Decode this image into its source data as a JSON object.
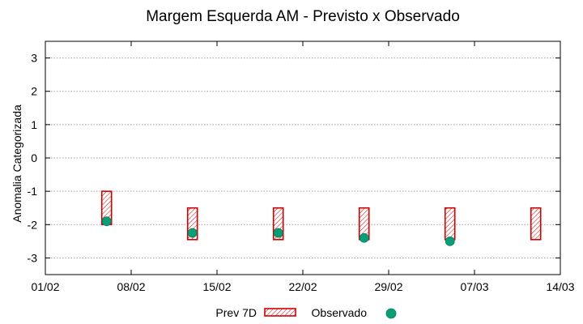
{
  "chart_data": {
    "type": "scatter",
    "title": "Margem Esquerda AM - Previsto x Observado",
    "xlabel": "",
    "ylabel": "Anomalia Categorizada",
    "x_tick_labels": [
      "01/02",
      "08/02",
      "15/02",
      "22/02",
      "29/02",
      "07/03",
      "14/03"
    ],
    "xlim_days": [
      0,
      42
    ],
    "ylim": [
      -3.5,
      3.5
    ],
    "y_ticks": [
      3,
      2,
      1,
      0,
      -1,
      -2,
      -3
    ],
    "grid": true,
    "legend_position": "bottom",
    "series": [
      {
        "name": "Prev 7D",
        "style": "hatched-box",
        "color": "#d40000",
        "points": [
          {
            "day": 5,
            "low": -2.0,
            "high": -1.0
          },
          {
            "day": 12,
            "low": -2.45,
            "high": -1.5
          },
          {
            "day": 19,
            "low": -2.45,
            "high": -1.5
          },
          {
            "day": 26,
            "low": -2.45,
            "high": -1.5
          },
          {
            "day": 33,
            "low": -2.45,
            "high": -1.5
          },
          {
            "day": 40,
            "low": -2.45,
            "high": -1.5
          }
        ]
      },
      {
        "name": "Observado",
        "style": "dot",
        "color": "#0a9e78",
        "points": [
          {
            "day": 5,
            "value": -1.9
          },
          {
            "day": 12,
            "value": -2.25
          },
          {
            "day": 19,
            "value": -2.25
          },
          {
            "day": 26,
            "value": -2.4
          },
          {
            "day": 33,
            "value": -2.5
          }
        ]
      }
    ]
  }
}
